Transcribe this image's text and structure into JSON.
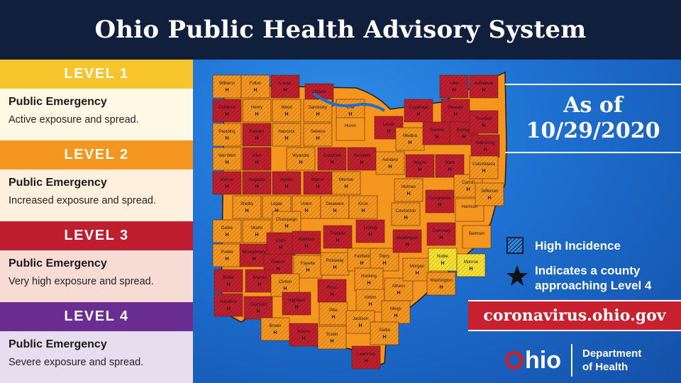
{
  "header": {
    "title": "Ohio Public Health Advisory System"
  },
  "levels": [
    {
      "name": "LEVEL 1",
      "title": "Public Emergency",
      "desc": "Active exposure and spread.",
      "head_color": "#f6c52b",
      "body_color": "#fff8e4"
    },
    {
      "name": "LEVEL 2",
      "title": "Public Emergency",
      "desc": "Increased exposure and spread.",
      "head_color": "#f5961e",
      "body_color": "#fff0de"
    },
    {
      "name": "LEVEL 3",
      "title": "Public Emergency",
      "desc": "Very high exposure and spread.",
      "head_color": "#be1e2d",
      "body_color": "#f7dcd6"
    },
    {
      "name": "LEVEL 4",
      "title": "Public Emergency",
      "desc": "Severe exposure and spread.",
      "head_color": "#6a2d91",
      "body_color": "#e6ddef"
    }
  ],
  "asof": {
    "line1": "As of",
    "line2": "10/29/2020"
  },
  "key": {
    "high_incidence": "High Incidence",
    "approaching_line1": "Indicates a county",
    "approaching_line2": "approaching Level 4",
    "hatch_icon": "hatch-square-icon",
    "star_icon": "star-icon"
  },
  "url": "coronavirus.ohio.gov",
  "logo": {
    "word": "hio",
    "dept_line1": "Department",
    "dept_line2": "of Health"
  },
  "colors": {
    "level2": "#f5961e",
    "level3": "#be1e2d",
    "level1": "#f6e030",
    "lake": "#1d6fd0"
  },
  "counties": [
    {
      "name": "Williams",
      "level": 2,
      "h": true
    },
    {
      "name": "Fulton",
      "level": 2,
      "h": true
    },
    {
      "name": "Lucas",
      "level": 3,
      "h": true
    },
    {
      "name": "Ottawa",
      "level": 3,
      "h": true
    },
    {
      "name": "Defiance",
      "level": 3,
      "h": true
    },
    {
      "name": "Henry",
      "level": 2,
      "h": true
    },
    {
      "name": "Wood",
      "level": 2,
      "h": true
    },
    {
      "name": "Sandusky",
      "level": 2,
      "h": true
    },
    {
      "name": "Erie",
      "level": 2,
      "h": true
    },
    {
      "name": "Paulding",
      "level": 2,
      "h": true
    },
    {
      "name": "Putnam",
      "level": 3,
      "h": true
    },
    {
      "name": "Hancock",
      "level": 2,
      "h": true
    },
    {
      "name": "Seneca",
      "level": 2,
      "h": true
    },
    {
      "name": "Huron",
      "level": 2,
      "h": false
    },
    {
      "name": "Van Wert",
      "level": 2,
      "h": true
    },
    {
      "name": "Allen",
      "level": 3,
      "h": true
    },
    {
      "name": "Wyandot",
      "level": 2,
      "h": true
    },
    {
      "name": "Crawford",
      "level": 3,
      "h": true
    },
    {
      "name": "Richland",
      "level": 3,
      "h": true
    },
    {
      "name": "Mercer",
      "level": 3,
      "h": true
    },
    {
      "name": "Auglaize",
      "level": 3,
      "h": true
    },
    {
      "name": "Hardin",
      "level": 3,
      "h": true
    },
    {
      "name": "Marion",
      "level": 3,
      "h": true
    },
    {
      "name": "Morrow",
      "level": 2,
      "h": true
    },
    {
      "name": "Shelby",
      "level": 2,
      "h": true
    },
    {
      "name": "Logan",
      "level": 2,
      "h": true
    },
    {
      "name": "Union",
      "level": 2,
      "h": true
    },
    {
      "name": "Delaware",
      "level": 2,
      "h": true
    },
    {
      "name": "Knox",
      "level": 2,
      "h": true
    },
    {
      "name": "Darke",
      "level": 2,
      "h": true
    },
    {
      "name": "Miami",
      "level": 2,
      "h": true
    },
    {
      "name": "Champaign",
      "level": 2,
      "h": true
    },
    {
      "name": "Licking",
      "level": 3,
      "h": true
    },
    {
      "name": "Preble",
      "level": 2,
      "h": true
    },
    {
      "name": "Montgomery",
      "level": 3,
      "h": true
    },
    {
      "name": "Clark",
      "level": 3,
      "h": true
    },
    {
      "name": "Madison",
      "level": 3,
      "h": true
    },
    {
      "name": "Franklin",
      "level": 3,
      "h": true
    },
    {
      "name": "Greene",
      "level": 3,
      "h": true
    },
    {
      "name": "Fayette",
      "level": 2,
      "h": true
    },
    {
      "name": "Pickaway",
      "level": 2,
      "h": true
    },
    {
      "name": "Fairfield",
      "level": 2,
      "h": true
    },
    {
      "name": "Perry",
      "level": 2,
      "h": true
    },
    {
      "name": "Butler",
      "level": 3,
      "h": true
    },
    {
      "name": "Warren",
      "level": 3,
      "h": true
    },
    {
      "name": "Clinton",
      "level": 2,
      "h": true
    },
    {
      "name": "Ross",
      "level": 3,
      "h": true
    },
    {
      "name": "Hocking",
      "level": 2,
      "h": true
    },
    {
      "name": "Hamilton",
      "level": 3,
      "h": true
    },
    {
      "name": "Clermont",
      "level": 3,
      "h": true
    },
    {
      "name": "Highland",
      "level": 3,
      "h": true
    },
    {
      "name": "Vinton",
      "level": 2,
      "h": true
    },
    {
      "name": "Athens",
      "level": 2,
      "h": true
    },
    {
      "name": "Brown",
      "level": 2,
      "h": true
    },
    {
      "name": "Adams",
      "level": 3,
      "h": true
    },
    {
      "name": "Pike",
      "level": 2,
      "h": true
    },
    {
      "name": "Jackson",
      "level": 2,
      "h": true
    },
    {
      "name": "Meigs",
      "level": 2,
      "h": true
    },
    {
      "name": "Scioto",
      "level": 2,
      "h": true
    },
    {
      "name": "Gallia",
      "level": 2,
      "h": true
    },
    {
      "name": "Lawrence",
      "level": 3,
      "h": true
    },
    {
      "name": "Lorain",
      "level": 3,
      "h": true
    },
    {
      "name": "Cuyahoga",
      "level": 3,
      "h": true
    },
    {
      "name": "Lake",
      "level": 3,
      "h": true
    },
    {
      "name": "Geauga",
      "level": 3,
      "h": true
    },
    {
      "name": "Ashtabula",
      "level": 3,
      "h": true
    },
    {
      "name": "Medina",
      "level": 2,
      "h": true
    },
    {
      "name": "Summit",
      "level": 3,
      "h": true
    },
    {
      "name": "Portage",
      "level": 3,
      "h": true
    },
    {
      "name": "Trumbull",
      "level": 3,
      "h": true
    },
    {
      "name": "Ashland",
      "level": 2,
      "h": true
    },
    {
      "name": "Wayne",
      "level": 3,
      "h": true
    },
    {
      "name": "Stark",
      "level": 3,
      "h": true
    },
    {
      "name": "Mahoning",
      "level": 3,
      "h": true
    },
    {
      "name": "Holmes",
      "level": 2,
      "h": true
    },
    {
      "name": "Carroll",
      "level": 2,
      "h": true
    },
    {
      "name": "Columbiana",
      "level": 2,
      "h": true
    },
    {
      "name": "Coshocton",
      "level": 2,
      "h": true
    },
    {
      "name": "Tuscarawas",
      "level": 3,
      "h": true
    },
    {
      "name": "Harrison",
      "level": 2,
      "h": false
    },
    {
      "name": "Jefferson",
      "level": 2,
      "h": true
    },
    {
      "name": "Muskingum",
      "level": 3,
      "h": true
    },
    {
      "name": "Guernsey",
      "level": 3,
      "h": true
    },
    {
      "name": "Belmont",
      "level": 2,
      "h": false
    },
    {
      "name": "Morgan",
      "level": 2,
      "h": true
    },
    {
      "name": "Noble",
      "level": 1,
      "h": true
    },
    {
      "name": "Monroe",
      "level": 1,
      "h": true
    },
    {
      "name": "Washington",
      "level": 2,
      "h": true
    }
  ]
}
